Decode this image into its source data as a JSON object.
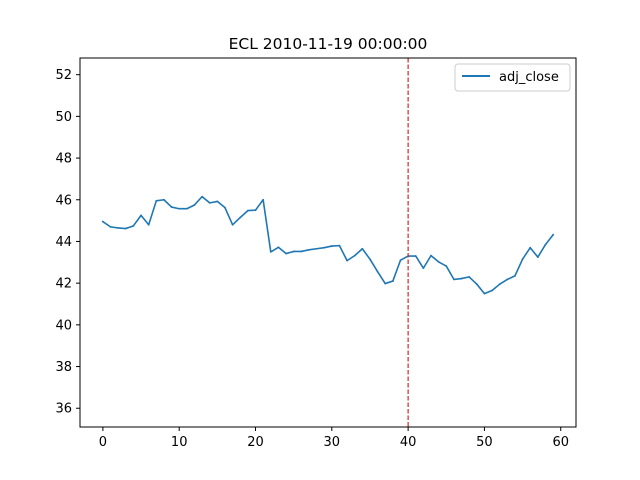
{
  "chart_data": {
    "type": "line",
    "title": "ECL 2010-11-19 00:00:00",
    "xlabel": "",
    "ylabel": "",
    "xlim": [
      -3,
      62
    ],
    "ylim": [
      35.1,
      52.8
    ],
    "xticks": [
      0,
      10,
      20,
      30,
      40,
      50,
      60
    ],
    "yticks": [
      36,
      38,
      40,
      42,
      44,
      46,
      48,
      50,
      52
    ],
    "grid": false,
    "legend_position": "top-right",
    "series": [
      {
        "name": "adj_close",
        "color": "#1f77b4",
        "x": [
          0,
          1,
          2,
          3,
          4,
          5,
          6,
          7,
          8,
          9,
          10,
          11,
          12,
          13,
          14,
          15,
          16,
          17,
          18,
          19,
          20,
          21,
          22,
          23,
          24,
          25,
          26,
          27,
          28,
          29,
          30,
          31,
          32,
          33,
          34,
          35,
          36,
          37,
          38,
          39,
          40,
          41,
          42,
          43,
          44,
          45,
          46,
          47,
          48,
          49,
          50,
          51,
          52,
          53,
          54,
          55,
          56,
          57,
          58,
          59
        ],
        "y": [
          44.95,
          44.7,
          44.65,
          44.62,
          44.75,
          45.25,
          44.8,
          45.95,
          46.0,
          45.65,
          45.57,
          45.57,
          45.75,
          46.15,
          45.85,
          45.92,
          45.62,
          44.8,
          45.15,
          45.48,
          45.5,
          46.0,
          43.5,
          43.72,
          43.42,
          43.52,
          43.52,
          43.6,
          43.65,
          43.7,
          43.78,
          43.8,
          43.08,
          43.32,
          43.65,
          43.15,
          42.55,
          41.98,
          42.1,
          43.1,
          43.3,
          43.3,
          42.72,
          43.32,
          43.02,
          42.82,
          42.18,
          42.22,
          42.3,
          41.95,
          41.5,
          41.65,
          41.95,
          42.18,
          42.35,
          43.15,
          43.7,
          43.25,
          43.85,
          44.32
        ]
      }
    ],
    "annotations": [
      {
        "type": "vline",
        "x": 40,
        "color": "#d62728",
        "style": "dashed"
      }
    ]
  }
}
